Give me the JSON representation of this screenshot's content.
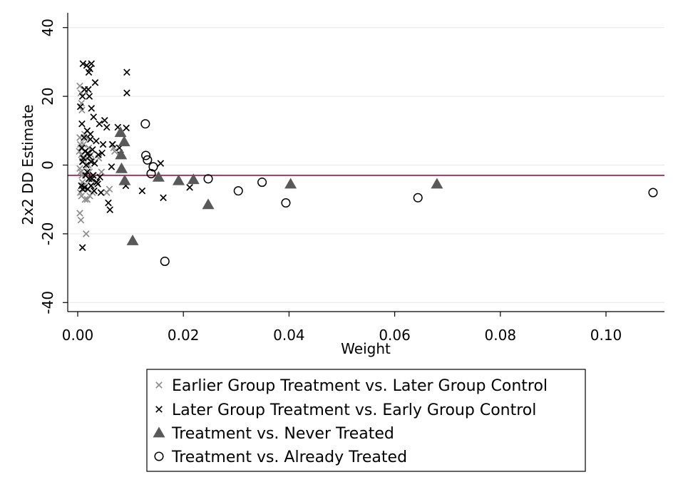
{
  "chart_data": {
    "type": "scatter",
    "xlabel": "Weight",
    "ylabel": "2x2 DD Estimate",
    "xlim": [
      -0.002,
      0.111
    ],
    "ylim": [
      -43,
      43
    ],
    "xticks": [
      0.0,
      0.02,
      0.04,
      0.06,
      0.08,
      0.1
    ],
    "xtick_labels": [
      "0.00",
      "0.02",
      "0.04",
      "0.06",
      "0.08",
      "0.10"
    ],
    "yticks": [
      -40,
      -20,
      0,
      20,
      40
    ],
    "ytick_labels": [
      "-40",
      "-20",
      "0",
      "20",
      "40"
    ],
    "grid": "horizontal",
    "reference_line": {
      "y": -3.0,
      "color": "#a50f3c"
    },
    "legend_position": "bottom",
    "colors": {
      "earlier": "#8c8c8c",
      "later": "#000000",
      "never": "#595959",
      "already": "#000000"
    },
    "series": [
      {
        "name": "Earlier Group Treatment vs. Later Group Control",
        "marker": "x-gray",
        "points": [
          [
            0.0004,
            23
          ],
          [
            0.0006,
            21
          ],
          [
            0.0007,
            18
          ],
          [
            0.0008,
            16
          ],
          [
            0.0004,
            8
          ],
          [
            0.0005,
            6
          ],
          [
            0.0006,
            5
          ],
          [
            0.0003,
            4
          ],
          [
            0.0007,
            3
          ],
          [
            0.0009,
            2
          ],
          [
            0.001,
            1
          ],
          [
            0.0004,
            -1
          ],
          [
            0.0006,
            -2
          ],
          [
            0.0008,
            -3
          ],
          [
            0.0009,
            -5
          ],
          [
            0.0011,
            -6
          ],
          [
            0.0012,
            -7
          ],
          [
            0.0005,
            -8
          ],
          [
            0.0007,
            -9
          ],
          [
            0.0014,
            -10
          ],
          [
            0.0004,
            -14
          ],
          [
            0.0006,
            -16
          ],
          [
            0.0016,
            -20
          ],
          [
            0.0015,
            4
          ],
          [
            0.0018,
            2
          ],
          [
            0.002,
            0
          ],
          [
            0.0022,
            -2
          ],
          [
            0.0024,
            -4
          ],
          [
            0.0026,
            -6
          ],
          [
            0.0028,
            -8
          ],
          [
            0.0018,
            -10
          ],
          [
            0.0021,
            5
          ],
          [
            0.0025,
            3
          ],
          [
            0.003,
            -3
          ],
          [
            0.0035,
            -5
          ],
          [
            0.004,
            2
          ],
          [
            0.0045,
            -2
          ],
          [
            0.0055,
            -8
          ],
          [
            0.006,
            -7
          ],
          [
            0.0065,
            6
          ],
          [
            0.0068,
            5
          ],
          [
            0.007,
            4
          ],
          [
            0.0013,
            9
          ],
          [
            0.0017,
            8
          ],
          [
            0.0011,
            6
          ],
          [
            0.0019,
            -7
          ],
          [
            0.0023,
            -9
          ],
          [
            0.0027,
            1
          ]
        ]
      },
      {
        "name": "Later Group Treatment vs. Early Group Control",
        "marker": "x-black",
        "points": [
          [
            0.001,
            29.5
          ],
          [
            0.0017,
            29
          ],
          [
            0.0026,
            29.5
          ],
          [
            0.0023,
            28
          ],
          [
            0.0021,
            27
          ],
          [
            0.0033,
            24
          ],
          [
            0.0093,
            27
          ],
          [
            0.0093,
            21
          ],
          [
            0.0013,
            22
          ],
          [
            0.0009,
            20
          ],
          [
            0.002,
            22
          ],
          [
            0.0022,
            20
          ],
          [
            0.0005,
            17
          ],
          [
            0.0026,
            16.5
          ],
          [
            0.003,
            14
          ],
          [
            0.0051,
            13
          ],
          [
            0.0008,
            12
          ],
          [
            0.0041,
            12
          ],
          [
            0.0055,
            11
          ],
          [
            0.0076,
            11
          ],
          [
            0.0092,
            10.8
          ],
          [
            0.0018,
            10
          ],
          [
            0.0024,
            9
          ],
          [
            0.0012,
            8
          ],
          [
            0.0035,
            7
          ],
          [
            0.0048,
            6
          ],
          [
            0.0066,
            6
          ],
          [
            0.0079,
            5
          ],
          [
            0.0008,
            5
          ],
          [
            0.0014,
            4
          ],
          [
            0.0019,
            3.5
          ],
          [
            0.0028,
            4.5
          ],
          [
            0.0039,
            3
          ],
          [
            0.0046,
            3.5
          ],
          [
            0.0081,
            3
          ],
          [
            0.0011,
            2
          ],
          [
            0.0022,
            2.5
          ],
          [
            0.0009,
            1
          ],
          [
            0.0025,
            1
          ],
          [
            0.0032,
            0.5
          ],
          [
            0.0016,
            0
          ],
          [
            0.0064,
            -0.5
          ],
          [
            0.0157,
            0.5
          ],
          [
            0.0018,
            -2
          ],
          [
            0.0029,
            -3
          ],
          [
            0.0042,
            -3.5
          ],
          [
            0.0021,
            -4
          ],
          [
            0.0036,
            -5
          ],
          [
            0.0007,
            -6
          ],
          [
            0.0013,
            -6.5
          ],
          [
            0.0025,
            -6
          ],
          [
            0.0009,
            -7
          ],
          [
            0.0019,
            -7
          ],
          [
            0.0031,
            -7.5
          ],
          [
            0.0091,
            -6
          ],
          [
            0.0122,
            -7.5
          ],
          [
            0.0212,
            -6.5
          ],
          [
            0.0044,
            -8
          ],
          [
            0.0162,
            -9.5
          ],
          [
            0.0058,
            -11
          ],
          [
            0.0061,
            -13
          ],
          [
            0.0009,
            -24
          ],
          [
            0.0027,
            -4
          ],
          [
            0.0038,
            -5.5
          ],
          [
            0.0015,
            -3
          ],
          [
            0.0024,
            7.5
          ]
        ]
      },
      {
        "name": "Treatment vs. Never Treated",
        "marker": "triangle",
        "points": [
          [
            0.0081,
            9.5
          ],
          [
            0.0088,
            6.8
          ],
          [
            0.0082,
            3
          ],
          [
            0.0083,
            -1
          ],
          [
            0.0089,
            -4.5
          ],
          [
            0.0104,
            -22
          ],
          [
            0.0153,
            -3.5
          ],
          [
            0.0191,
            -4.5
          ],
          [
            0.0219,
            -4.2
          ],
          [
            0.0247,
            -11.5
          ],
          [
            0.0403,
            -5.5
          ],
          [
            0.068,
            -5.5
          ]
        ]
      },
      {
        "name": "Treatment vs. Already Treated",
        "marker": "circle",
        "points": [
          [
            0.0128,
            12
          ],
          [
            0.0129,
            2.8
          ],
          [
            0.0132,
            1.5
          ],
          [
            0.0143,
            -0.5
          ],
          [
            0.0139,
            -2.5
          ],
          [
            0.0165,
            -28
          ],
          [
            0.0247,
            -4
          ],
          [
            0.0304,
            -7.5
          ],
          [
            0.0349,
            -5
          ],
          [
            0.0394,
            -11
          ],
          [
            0.0644,
            -9.5
          ],
          [
            0.1089,
            -8
          ]
        ]
      }
    ]
  }
}
